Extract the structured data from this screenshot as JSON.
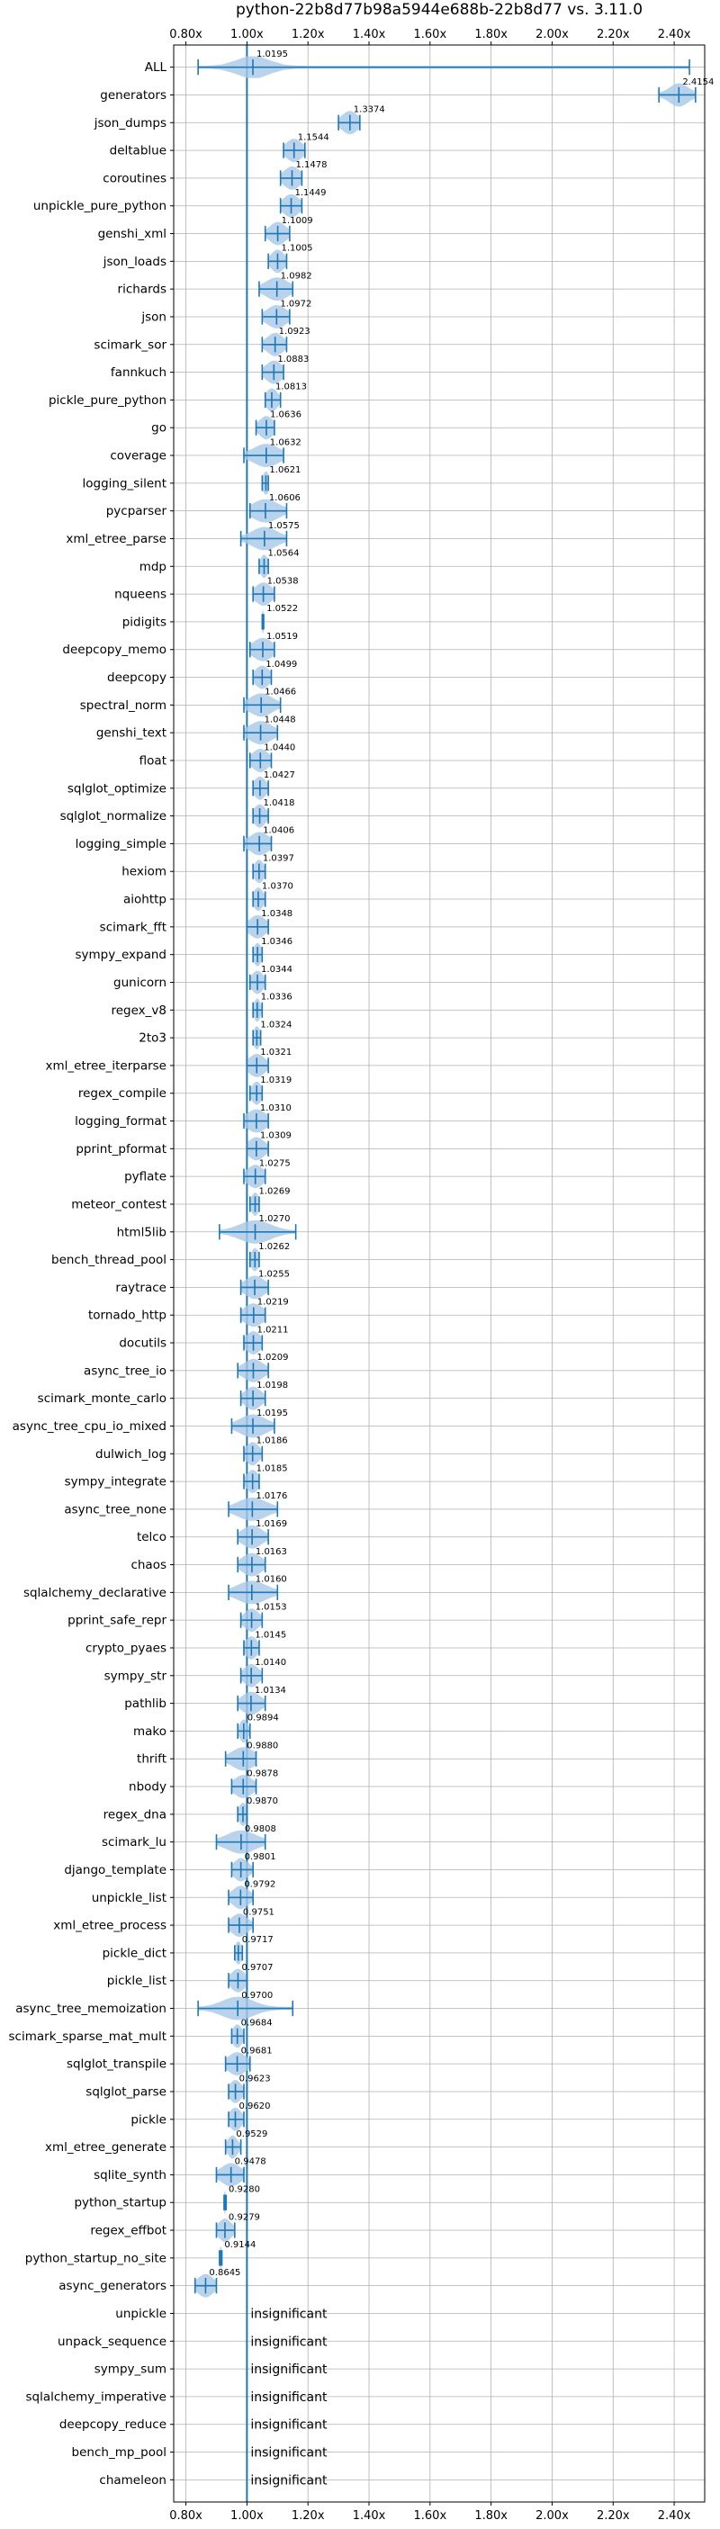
{
  "chart_data": {
    "type": "violin",
    "title": "python-22b8d77b98a5944e688b-22b8d77 vs. 3.11.0",
    "xlim": [
      0.76,
      2.5
    ],
    "x_ticks": [
      0.8,
      1.0,
      1.2,
      1.4,
      1.6,
      1.8,
      2.0,
      2.2,
      2.4
    ],
    "x_tick_labels": [
      "0.80x",
      "1.00x",
      "1.20x",
      "1.40x",
      "1.60x",
      "1.80x",
      "2.00x",
      "2.20x",
      "2.40x"
    ],
    "reference_line": 1.0,
    "grid": true,
    "colors": {
      "line": "#1f77b4",
      "violin": "#a6c8e6",
      "grid": "#b0b0b0"
    },
    "insignificant_text": "insignificant",
    "benchmarks": [
      {
        "name": "ALL",
        "value": 1.0195,
        "label": "1.0195",
        "lo": 0.84,
        "hi": 2.45,
        "spread": 0.05
      },
      {
        "name": "generators",
        "value": 2.4154,
        "label": "2.4154",
        "lo": 2.35,
        "hi": 2.47,
        "spread": 0.03
      },
      {
        "name": "json_dumps",
        "value": 1.3374,
        "label": "1.3374",
        "lo": 1.3,
        "hi": 1.37,
        "spread": 0.025
      },
      {
        "name": "deltablue",
        "value": 1.1544,
        "label": "1.1544",
        "lo": 1.12,
        "hi": 1.19,
        "spread": 0.025
      },
      {
        "name": "coroutines",
        "value": 1.1478,
        "label": "1.1478",
        "lo": 1.11,
        "hi": 1.18,
        "spread": 0.025
      },
      {
        "name": "unpickle_pure_python",
        "value": 1.1449,
        "label": "1.1449",
        "lo": 1.11,
        "hi": 1.18,
        "spread": 0.025
      },
      {
        "name": "genshi_xml",
        "value": 1.1009,
        "label": "1.1009",
        "lo": 1.06,
        "hi": 1.14,
        "spread": 0.025
      },
      {
        "name": "json_loads",
        "value": 1.1005,
        "label": "1.1005",
        "lo": 1.07,
        "hi": 1.13,
        "spread": 0.02
      },
      {
        "name": "richards",
        "value": 1.0982,
        "label": "1.0982",
        "lo": 1.04,
        "hi": 1.15,
        "spread": 0.035
      },
      {
        "name": "json",
        "value": 1.0972,
        "label": "1.0972",
        "lo": 1.05,
        "hi": 1.14,
        "spread": 0.03
      },
      {
        "name": "scimark_sor",
        "value": 1.0923,
        "label": "1.0923",
        "lo": 1.05,
        "hi": 1.13,
        "spread": 0.025
      },
      {
        "name": "fannkuch",
        "value": 1.0883,
        "label": "1.0883",
        "lo": 1.05,
        "hi": 1.12,
        "spread": 0.025
      },
      {
        "name": "pickle_pure_python",
        "value": 1.0813,
        "label": "1.0813",
        "lo": 1.06,
        "hi": 1.11,
        "spread": 0.018
      },
      {
        "name": "go",
        "value": 1.0636,
        "label": "1.0636",
        "lo": 1.03,
        "hi": 1.09,
        "spread": 0.022
      },
      {
        "name": "coverage",
        "value": 1.0632,
        "label": "1.0632",
        "lo": 0.99,
        "hi": 1.12,
        "spread": 0.04
      },
      {
        "name": "logging_silent",
        "value": 1.0621,
        "label": "1.0621",
        "lo": 1.05,
        "hi": 1.07,
        "spread": 0.01
      },
      {
        "name": "pycparser",
        "value": 1.0606,
        "label": "1.0606",
        "lo": 1.01,
        "hi": 1.13,
        "spread": 0.04
      },
      {
        "name": "xml_etree_parse",
        "value": 1.0575,
        "label": "1.0575",
        "lo": 0.98,
        "hi": 1.13,
        "spread": 0.04
      },
      {
        "name": "mdp",
        "value": 1.0564,
        "label": "1.0564",
        "lo": 1.04,
        "hi": 1.07,
        "spread": 0.012
      },
      {
        "name": "nqueens",
        "value": 1.0538,
        "label": "1.0538",
        "lo": 1.02,
        "hi": 1.09,
        "spread": 0.025
      },
      {
        "name": "pidigits",
        "value": 1.0522,
        "label": "1.0522",
        "lo": 1.05,
        "hi": 1.055,
        "spread": 0.003
      },
      {
        "name": "deepcopy_memo",
        "value": 1.0519,
        "label": "1.0519",
        "lo": 1.01,
        "hi": 1.09,
        "spread": 0.03
      },
      {
        "name": "deepcopy",
        "value": 1.0499,
        "label": "1.0499",
        "lo": 1.02,
        "hi": 1.08,
        "spread": 0.022
      },
      {
        "name": "spectral_norm",
        "value": 1.0466,
        "label": "1.0466",
        "lo": 0.99,
        "hi": 1.11,
        "spread": 0.035
      },
      {
        "name": "genshi_text",
        "value": 1.0448,
        "label": "1.0448",
        "lo": 0.99,
        "hi": 1.1,
        "spread": 0.035
      },
      {
        "name": "float",
        "value": 1.044,
        "label": "1.0440",
        "lo": 1.01,
        "hi": 1.08,
        "spread": 0.025
      },
      {
        "name": "sqlglot_optimize",
        "value": 1.0427,
        "label": "1.0427",
        "lo": 1.02,
        "hi": 1.07,
        "spread": 0.018
      },
      {
        "name": "sqlglot_normalize",
        "value": 1.0418,
        "label": "1.0418",
        "lo": 1.02,
        "hi": 1.07,
        "spread": 0.018
      },
      {
        "name": "logging_simple",
        "value": 1.0406,
        "label": "1.0406",
        "lo": 0.99,
        "hi": 1.08,
        "spread": 0.03
      },
      {
        "name": "hexiom",
        "value": 1.0397,
        "label": "1.0397",
        "lo": 1.02,
        "hi": 1.06,
        "spread": 0.015
      },
      {
        "name": "aiohttp",
        "value": 1.037,
        "label": "1.0370",
        "lo": 1.02,
        "hi": 1.06,
        "spread": 0.015
      },
      {
        "name": "scimark_fft",
        "value": 1.0348,
        "label": "1.0348",
        "lo": 1.0,
        "hi": 1.07,
        "spread": 0.025
      },
      {
        "name": "sympy_expand",
        "value": 1.0346,
        "label": "1.0346",
        "lo": 1.02,
        "hi": 1.05,
        "spread": 0.012
      },
      {
        "name": "gunicorn",
        "value": 1.0344,
        "label": "1.0344",
        "lo": 1.01,
        "hi": 1.06,
        "spread": 0.018
      },
      {
        "name": "regex_v8",
        "value": 1.0336,
        "label": "1.0336",
        "lo": 1.02,
        "hi": 1.05,
        "spread": 0.01
      },
      {
        "name": "2to3",
        "value": 1.0324,
        "label": "1.0324",
        "lo": 1.02,
        "hi": 1.045,
        "spread": 0.01
      },
      {
        "name": "xml_etree_iterparse",
        "value": 1.0321,
        "label": "1.0321",
        "lo": 1.0,
        "hi": 1.07,
        "spread": 0.025
      },
      {
        "name": "regex_compile",
        "value": 1.0319,
        "label": "1.0319",
        "lo": 1.01,
        "hi": 1.05,
        "spread": 0.015
      },
      {
        "name": "logging_format",
        "value": 1.031,
        "label": "1.0310",
        "lo": 0.99,
        "hi": 1.07,
        "spread": 0.03
      },
      {
        "name": "pprint_pformat",
        "value": 1.0309,
        "label": "1.0309",
        "lo": 1.0,
        "hi": 1.07,
        "spread": 0.025
      },
      {
        "name": "pyflate",
        "value": 1.0275,
        "label": "1.0275",
        "lo": 0.99,
        "hi": 1.06,
        "spread": 0.025
      },
      {
        "name": "meteor_contest",
        "value": 1.0269,
        "label": "1.0269",
        "lo": 1.01,
        "hi": 1.04,
        "spread": 0.012
      },
      {
        "name": "html5lib",
        "value": 1.027,
        "label": "1.0270",
        "lo": 0.91,
        "hi": 1.16,
        "spread": 0.05
      },
      {
        "name": "bench_thread_pool",
        "value": 1.0262,
        "label": "1.0262",
        "lo": 1.01,
        "hi": 1.04,
        "spread": 0.012
      },
      {
        "name": "raytrace",
        "value": 1.0255,
        "label": "1.0255",
        "lo": 0.98,
        "hi": 1.07,
        "spread": 0.03
      },
      {
        "name": "tornado_http",
        "value": 1.0219,
        "label": "1.0219",
        "lo": 0.98,
        "hi": 1.06,
        "spread": 0.03
      },
      {
        "name": "docutils",
        "value": 1.0211,
        "label": "1.0211",
        "lo": 0.99,
        "hi": 1.05,
        "spread": 0.022
      },
      {
        "name": "async_tree_io",
        "value": 1.0209,
        "label": "1.0209",
        "lo": 0.97,
        "hi": 1.07,
        "spread": 0.03
      },
      {
        "name": "scimark_monte_carlo",
        "value": 1.0198,
        "label": "1.0198",
        "lo": 0.98,
        "hi": 1.06,
        "spread": 0.025
      },
      {
        "name": "async_tree_cpu_io_mixed",
        "value": 1.0195,
        "label": "1.0195",
        "lo": 0.95,
        "hi": 1.09,
        "spread": 0.04
      },
      {
        "name": "dulwich_log",
        "value": 1.0186,
        "label": "1.0186",
        "lo": 0.99,
        "hi": 1.05,
        "spread": 0.02
      },
      {
        "name": "sympy_integrate",
        "value": 1.0185,
        "label": "1.0185",
        "lo": 0.99,
        "hi": 1.04,
        "spread": 0.018
      },
      {
        "name": "async_tree_none",
        "value": 1.0176,
        "label": "1.0176",
        "lo": 0.94,
        "hi": 1.1,
        "spread": 0.045
      },
      {
        "name": "telco",
        "value": 1.0169,
        "label": "1.0169",
        "lo": 0.97,
        "hi": 1.07,
        "spread": 0.03
      },
      {
        "name": "chaos",
        "value": 1.0163,
        "label": "1.0163",
        "lo": 0.97,
        "hi": 1.06,
        "spread": 0.03
      },
      {
        "name": "sqlalchemy_declarative",
        "value": 1.016,
        "label": "1.0160",
        "lo": 0.94,
        "hi": 1.1,
        "spread": 0.045
      },
      {
        "name": "pprint_safe_repr",
        "value": 1.0153,
        "label": "1.0153",
        "lo": 0.98,
        "hi": 1.05,
        "spread": 0.022
      },
      {
        "name": "crypto_pyaes",
        "value": 1.0145,
        "label": "1.0145",
        "lo": 0.99,
        "hi": 1.04,
        "spread": 0.018
      },
      {
        "name": "sympy_str",
        "value": 1.014,
        "label": "1.0140",
        "lo": 0.98,
        "hi": 1.05,
        "spread": 0.022
      },
      {
        "name": "pathlib",
        "value": 1.0134,
        "label": "1.0134",
        "lo": 0.97,
        "hi": 1.06,
        "spread": 0.028
      },
      {
        "name": "mako",
        "value": 0.9894,
        "label": "0.9894",
        "lo": 0.97,
        "hi": 1.01,
        "spread": 0.012
      },
      {
        "name": "thrift",
        "value": 0.988,
        "label": "0.9880",
        "lo": 0.93,
        "hi": 1.03,
        "spread": 0.035
      },
      {
        "name": "nbody",
        "value": 0.9878,
        "label": "0.9878",
        "lo": 0.95,
        "hi": 1.03,
        "spread": 0.028
      },
      {
        "name": "regex_dna",
        "value": 0.987,
        "label": "0.9870",
        "lo": 0.97,
        "hi": 1.0,
        "spread": 0.012
      },
      {
        "name": "scimark_lu",
        "value": 0.9808,
        "label": "0.9808",
        "lo": 0.9,
        "hi": 1.06,
        "spread": 0.045
      },
      {
        "name": "django_template",
        "value": 0.9801,
        "label": "0.9801",
        "lo": 0.95,
        "hi": 1.02,
        "spread": 0.022
      },
      {
        "name": "unpickle_list",
        "value": 0.9792,
        "label": "0.9792",
        "lo": 0.94,
        "hi": 1.02,
        "spread": 0.025
      },
      {
        "name": "xml_etree_process",
        "value": 0.9751,
        "label": "0.9751",
        "lo": 0.94,
        "hi": 1.02,
        "spread": 0.025
      },
      {
        "name": "pickle_dict",
        "value": 0.9717,
        "label": "0.9717",
        "lo": 0.96,
        "hi": 0.985,
        "spread": 0.01
      },
      {
        "name": "pickle_list",
        "value": 0.9707,
        "label": "0.9707",
        "lo": 0.94,
        "hi": 1.0,
        "spread": 0.022
      },
      {
        "name": "async_tree_memoization",
        "value": 0.97,
        "label": "0.9700",
        "lo": 0.84,
        "hi": 1.15,
        "spread": 0.05
      },
      {
        "name": "scimark_sparse_mat_mult",
        "value": 0.9684,
        "label": "0.9684",
        "lo": 0.95,
        "hi": 0.99,
        "spread": 0.015
      },
      {
        "name": "sqlglot_transpile",
        "value": 0.9681,
        "label": "0.9681",
        "lo": 0.93,
        "hi": 1.01,
        "spread": 0.028
      },
      {
        "name": "sqlglot_parse",
        "value": 0.9623,
        "label": "0.9623",
        "lo": 0.94,
        "hi": 0.99,
        "spread": 0.018
      },
      {
        "name": "pickle",
        "value": 0.962,
        "label": "0.9620",
        "lo": 0.94,
        "hi": 0.99,
        "spread": 0.018
      },
      {
        "name": "xml_etree_generate",
        "value": 0.9529,
        "label": "0.9529",
        "lo": 0.93,
        "hi": 0.98,
        "spread": 0.015
      },
      {
        "name": "sqlite_synth",
        "value": 0.9478,
        "label": "0.9478",
        "lo": 0.9,
        "hi": 0.99,
        "spread": 0.03
      },
      {
        "name": "python_startup",
        "value": 0.928,
        "label": "0.9280",
        "lo": 0.925,
        "hi": 0.932,
        "spread": 0.003
      },
      {
        "name": "regex_effbot",
        "value": 0.9279,
        "label": "0.9279",
        "lo": 0.9,
        "hi": 0.96,
        "spread": 0.02
      },
      {
        "name": "python_startup_no_site",
        "value": 0.9144,
        "label": "0.9144",
        "lo": 0.91,
        "hi": 0.918,
        "spread": 0.003
      },
      {
        "name": "async_generators",
        "value": 0.8645,
        "label": "0.8645",
        "lo": 0.83,
        "hi": 0.9,
        "spread": 0.025
      },
      {
        "name": "unpickle",
        "insignificant": true
      },
      {
        "name": "unpack_sequence",
        "insignificant": true
      },
      {
        "name": "sympy_sum",
        "insignificant": true
      },
      {
        "name": "sqlalchemy_imperative",
        "insignificant": true
      },
      {
        "name": "deepcopy_reduce",
        "insignificant": true
      },
      {
        "name": "bench_mp_pool",
        "insignificant": true
      },
      {
        "name": "chameleon",
        "insignificant": true
      }
    ]
  }
}
